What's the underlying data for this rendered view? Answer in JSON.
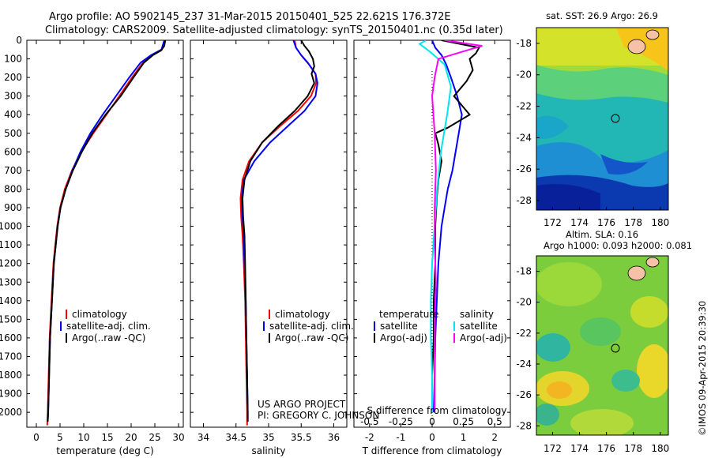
{
  "title": {
    "line1": "Argo profile: AO 5902145_237 31-Mar-2015 20150401_525 22.621S 176.372E",
    "line2": "Climatology: CARS2009. Satellite-adjusted climatology: synTS_20150401.nc (0.35d later)"
  },
  "colors": {
    "climatology": "#ff0000",
    "satellite": "#0000ff",
    "argo": "#000000",
    "sal_satellite": "#00e5ee",
    "sal_argo": "#ff00ff"
  },
  "credit": {
    "line1": "US ARGO PROJECT",
    "line2": "PI: GREGORY C. JOHNSON"
  },
  "watermark": "©IMOS 09-Apr-2015 20:39:30",
  "map_sst": {
    "title": "sat. SST: 26.9 Argo: 26.9",
    "xticks": [
      "172",
      "174",
      "176",
      "178",
      "180"
    ],
    "yticks": [
      "-18",
      "-20",
      "-22",
      "-24",
      "-26",
      "-28"
    ]
  },
  "map_sla": {
    "title_line1": "Altim. SLA: 0.16",
    "title_line2": "Argo h1000: 0.093 h2000: 0.081",
    "xticks": [
      "172",
      "174",
      "176",
      "178",
      "180"
    ],
    "yticks": [
      "-18",
      "-20",
      "-22",
      "-24",
      "-26",
      "-28"
    ]
  },
  "chart_data": [
    {
      "type": "line",
      "panel": "temperature",
      "xlabel": "temperature (deg C)",
      "xlim": [
        -2,
        31
      ],
      "ylim": [
        2080,
        0
      ],
      "xticks": [
        "0",
        "5",
        "10",
        "15",
        "20",
        "25",
        "30"
      ],
      "yticks": [
        "0",
        "100",
        "200",
        "300",
        "400",
        "500",
        "600",
        "700",
        "800",
        "900",
        "1000",
        "1100",
        "1200",
        "1300",
        "1400",
        "1500",
        "1600",
        "1700",
        "1800",
        "1900",
        "2000"
      ],
      "legend": [
        "climatology",
        "satellite-adj. clim.",
        "Argo(..raw -QC)"
      ],
      "series": [
        {
          "name": "climatology",
          "color": "#ff0000",
          "points": [
            [
              27,
              0
            ],
            [
              26.5,
              50
            ],
            [
              24.5,
              80
            ],
            [
              22.5,
              120
            ],
            [
              20.2,
              200
            ],
            [
              17.5,
              300
            ],
            [
              14.8,
              400
            ],
            [
              12,
              500
            ],
            [
              9.5,
              600
            ],
            [
              7.5,
              700
            ],
            [
              6,
              800
            ],
            [
              5,
              900
            ],
            [
              4.4,
              1000
            ],
            [
              4,
              1100
            ],
            [
              3.6,
              1200
            ],
            [
              3.4,
              1300
            ],
            [
              3.2,
              1400
            ],
            [
              3,
              1500
            ],
            [
              2.8,
              1600
            ],
            [
              2.7,
              1700
            ],
            [
              2.6,
              1800
            ],
            [
              2.5,
              1900
            ],
            [
              2.4,
              2000
            ],
            [
              2.3,
              2070
            ]
          ]
        },
        {
          "name": "satellite-adj. clim.",
          "color": "#0000ff",
          "points": [
            [
              27,
              0
            ],
            [
              26.4,
              50
            ],
            [
              24.2,
              80
            ],
            [
              22,
              120
            ],
            [
              19.6,
              200
            ],
            [
              16.8,
              300
            ],
            [
              14,
              400
            ],
            [
              11.4,
              500
            ],
            [
              9.3,
              600
            ],
            [
              7.6,
              700
            ],
            [
              6.2,
              800
            ],
            [
              5.1,
              900
            ],
            [
              4.5,
              1000
            ],
            [
              4.1,
              1100
            ],
            [
              3.7,
              1200
            ],
            [
              3.5,
              1300
            ],
            [
              3.3,
              1400
            ],
            [
              3.1,
              1500
            ],
            [
              2.9,
              1600
            ],
            [
              2.8,
              1700
            ],
            [
              2.7,
              1800
            ],
            [
              2.6,
              1900
            ],
            [
              2.5,
              2000
            ],
            [
              2.4,
              2050
            ]
          ]
        },
        {
          "name": "Argo(..raw -QC)",
          "color": "#000000",
          "points": [
            [
              27.2,
              0
            ],
            [
              27,
              30
            ],
            [
              26.3,
              55
            ],
            [
              24.6,
              80
            ],
            [
              22.7,
              120
            ],
            [
              20.5,
              200
            ],
            [
              17.8,
              300
            ],
            [
              14.6,
              400
            ],
            [
              11.8,
              500
            ],
            [
              9.6,
              600
            ],
            [
              7.7,
              700
            ],
            [
              6.2,
              800
            ],
            [
              5.1,
              900
            ],
            [
              4.5,
              1000
            ],
            [
              4.1,
              1100
            ],
            [
              3.7,
              1200
            ],
            [
              3.5,
              1300
            ],
            [
              3.3,
              1400
            ],
            [
              3.1,
              1500
            ],
            [
              2.9,
              1600
            ],
            [
              2.8,
              1700
            ],
            [
              2.7,
              1800
            ],
            [
              2.6,
              1900
            ],
            [
              2.5,
              2000
            ],
            [
              2.4,
              2050
            ]
          ]
        }
      ]
    },
    {
      "type": "line",
      "panel": "salinity",
      "xlabel": "salinity",
      "xlim": [
        33.8,
        36.2
      ],
      "ylim": [
        2080,
        0
      ],
      "xticks": [
        "34",
        "34.5",
        "35",
        "35.5",
        "36"
      ],
      "legend": [
        "climatology",
        "satellite-adj. clim.",
        "Argo(..raw -QC)"
      ],
      "series": [
        {
          "name": "climatology",
          "color": "#ff0000",
          "points": [
            [
              35.4,
              0
            ],
            [
              35.42,
              40
            ],
            [
              35.5,
              80
            ],
            [
              35.62,
              130
            ],
            [
              35.72,
              180
            ],
            [
              35.73,
              230
            ],
            [
              35.65,
              300
            ],
            [
              35.45,
              380
            ],
            [
              35.18,
              460
            ],
            [
              34.9,
              550
            ],
            [
              34.7,
              650
            ],
            [
              34.6,
              750
            ],
            [
              34.57,
              850
            ],
            [
              34.58,
              950
            ],
            [
              34.6,
              1050
            ],
            [
              34.62,
              1200
            ],
            [
              34.64,
              1400
            ],
            [
              34.65,
              1600
            ],
            [
              34.66,
              1800
            ],
            [
              34.67,
              2000
            ],
            [
              34.67,
              2070
            ]
          ]
        },
        {
          "name": "satellite-adj. clim.",
          "color": "#0000ff",
          "points": [
            [
              35.38,
              0
            ],
            [
              35.42,
              40
            ],
            [
              35.5,
              80
            ],
            [
              35.6,
              120
            ],
            [
              35.72,
              180
            ],
            [
              35.75,
              230
            ],
            [
              35.72,
              300
            ],
            [
              35.55,
              380
            ],
            [
              35.3,
              460
            ],
            [
              35.02,
              550
            ],
            [
              34.78,
              650
            ],
            [
              34.62,
              750
            ],
            [
              34.59,
              850
            ],
            [
              34.6,
              950
            ],
            [
              34.62,
              1050
            ],
            [
              34.63,
              1200
            ],
            [
              34.65,
              1400
            ],
            [
              34.66,
              1600
            ],
            [
              34.67,
              1800
            ],
            [
              34.68,
              2000
            ],
            [
              34.68,
              2050
            ]
          ]
        },
        {
          "name": "Argo(..raw -QC)",
          "color": "#000000",
          "points": [
            [
              35.5,
              0
            ],
            [
              35.55,
              30
            ],
            [
              35.62,
              60
            ],
            [
              35.68,
              100
            ],
            [
              35.7,
              140
            ],
            [
              35.66,
              180
            ],
            [
              35.7,
              230
            ],
            [
              35.6,
              300
            ],
            [
              35.4,
              380
            ],
            [
              35.15,
              460
            ],
            [
              34.9,
              550
            ],
            [
              34.72,
              650
            ],
            [
              34.63,
              750
            ],
            [
              34.6,
              850
            ],
            [
              34.61,
              950
            ],
            [
              34.63,
              1050
            ],
            [
              34.64,
              1200
            ],
            [
              34.65,
              1400
            ],
            [
              34.66,
              1600
            ],
            [
              34.67,
              1800
            ],
            [
              34.68,
              2000
            ],
            [
              34.68,
              2050
            ]
          ]
        }
      ]
    },
    {
      "type": "line",
      "panel": "differences",
      "xlabel_top": "S difference from climatology",
      "xlabel": "T difference from climatology",
      "xlim": [
        -2.5,
        2.5
      ],
      "xlim_salinity": [
        -0.625,
        0.625
      ],
      "ylim": [
        2080,
        0
      ],
      "xticks": [
        "-2",
        "-1",
        "0",
        "1",
        "2"
      ],
      "xticks_salinity": [
        "-0.5",
        "-0.25",
        "0",
        "0.25",
        "0.5"
      ],
      "legend_temperature": [
        "temperature",
        "satellite",
        "Argo(-adj)"
      ],
      "legend_salinity": [
        "salinity",
        "satellite",
        "Argo(-adj)"
      ],
      "series": [
        {
          "name": "satellite",
          "quantity": "temperature",
          "color": "#0000ff",
          "points": [
            [
              0,
              0
            ],
            [
              0.1,
              40
            ],
            [
              0.3,
              80
            ],
            [
              0.45,
              130
            ],
            [
              0.6,
              200
            ],
            [
              0.8,
              300
            ],
            [
              0.95,
              400
            ],
            [
              0.85,
              500
            ],
            [
              0.75,
              600
            ],
            [
              0.65,
              700
            ],
            [
              0.5,
              800
            ],
            [
              0.4,
              900
            ],
            [
              0.3,
              1000
            ],
            [
              0.2,
              1200
            ],
            [
              0.15,
              1400
            ],
            [
              0.1,
              1600
            ],
            [
              0.08,
              1800
            ],
            [
              0.05,
              2000
            ]
          ]
        },
        {
          "name": "Argo(-adj)",
          "quantity": "temperature",
          "color": "#000000",
          "points": [
            [
              0.3,
              0
            ],
            [
              1.5,
              40
            ],
            [
              1.4,
              70
            ],
            [
              1.2,
              100
            ],
            [
              1.3,
              160
            ],
            [
              1.1,
              220
            ],
            [
              0.7,
              300
            ],
            [
              1.2,
              400
            ],
            [
              0.5,
              470
            ],
            [
              0.1,
              500
            ],
            [
              0.2,
              560
            ],
            [
              0.3,
              650
            ],
            [
              0.2,
              750
            ],
            [
              0.15,
              850
            ],
            [
              0.1,
              1000
            ],
            [
              0.1,
              1200
            ],
            [
              0.05,
              1400
            ],
            [
              0.05,
              1600
            ],
            [
              0,
              1800
            ],
            [
              0,
              2000
            ]
          ]
        },
        {
          "name": "satellite",
          "quantity": "salinity",
          "color": "#00e5ee",
          "points": [
            [
              -0.05,
              0
            ],
            [
              -0.1,
              20
            ],
            [
              -0.02,
              60
            ],
            [
              0.1,
              130
            ],
            [
              0.15,
              250
            ],
            [
              0.12,
              400
            ],
            [
              0.07,
              600
            ],
            [
              0.04,
              800
            ],
            [
              0.02,
              1000
            ],
            [
              0,
              1200
            ],
            [
              -0.01,
              1400
            ],
            [
              -0.01,
              1600
            ],
            [
              0,
              1800
            ],
            [
              0,
              2000
            ]
          ]
        },
        {
          "name": "Argo(-adj)",
          "quantity": "salinity",
          "color": "#ff00ff",
          "points": [
            [
              0.1,
              0
            ],
            [
              0.4,
              30
            ],
            [
              0.25,
              60
            ],
            [
              0.05,
              100
            ],
            [
              0.02,
              200
            ],
            [
              0,
              300
            ],
            [
              0.02,
              500
            ],
            [
              0.03,
              700
            ],
            [
              0.02,
              900
            ],
            [
              0.02,
              1100
            ],
            [
              0.03,
              1300
            ],
            [
              0.02,
              1500
            ],
            [
              0.02,
              1700
            ],
            [
              0.02,
              1900
            ],
            [
              0.02,
              2000
            ]
          ]
        }
      ]
    }
  ]
}
